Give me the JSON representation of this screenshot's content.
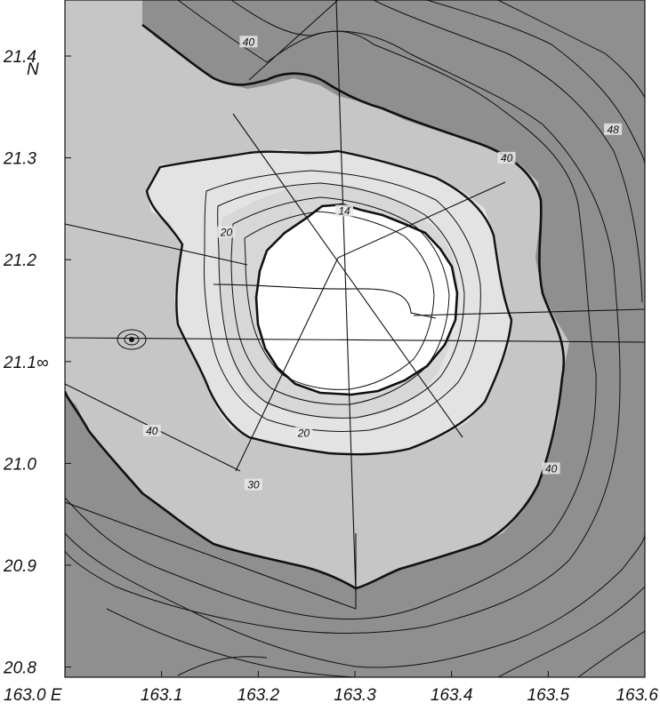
{
  "map": {
    "x_axis": {
      "ticks": [
        {
          "value": 163.0,
          "label": "163.0 E"
        },
        {
          "value": 163.1,
          "label": "163.1"
        },
        {
          "value": 163.2,
          "label": "163.2"
        },
        {
          "value": 163.3,
          "label": "163.3"
        },
        {
          "value": 163.4,
          "label": "163.4"
        },
        {
          "value": 163.5,
          "label": "163.5"
        },
        {
          "value": 163.6,
          "label": "163.6"
        }
      ]
    },
    "y_axis": {
      "ticks": [
        {
          "value": 21.4,
          "label": "21.4"
        },
        {
          "value": 21.3,
          "label": "21.3"
        },
        {
          "value": 21.2,
          "label": "21.2"
        },
        {
          "value": 21.1,
          "label": "21.1∞"
        },
        {
          "value": 21.0,
          "label": "21.0"
        },
        {
          "value": 20.9,
          "label": "20.9"
        },
        {
          "value": 20.8,
          "label": "20.8"
        }
      ],
      "unit_label": "N"
    },
    "contour_labels": [
      {
        "text": "40",
        "lon": 163.09,
        "lat": 21.03
      },
      {
        "text": "40",
        "lon": 163.19,
        "lat": 21.412
      },
      {
        "text": "40",
        "lon": 163.457,
        "lat": 21.298
      },
      {
        "text": "40",
        "lon": 163.503,
        "lat": 20.993
      },
      {
        "text": "48",
        "lon": 163.567,
        "lat": 21.326
      },
      {
        "text": "20",
        "lon": 163.167,
        "lat": 21.225
      },
      {
        "text": "20",
        "lon": 163.247,
        "lat": 21.028
      },
      {
        "text": "14",
        "lon": 163.289,
        "lat": 21.246
      },
      {
        "text": "30",
        "lon": 163.195,
        "lat": 20.977
      }
    ],
    "colors": {
      "deep": "#8f8f8f",
      "mid": "#c6c6c6",
      "shallow": "#e3e3e3",
      "summit": "#ffffff",
      "line": "#111111"
    }
  }
}
